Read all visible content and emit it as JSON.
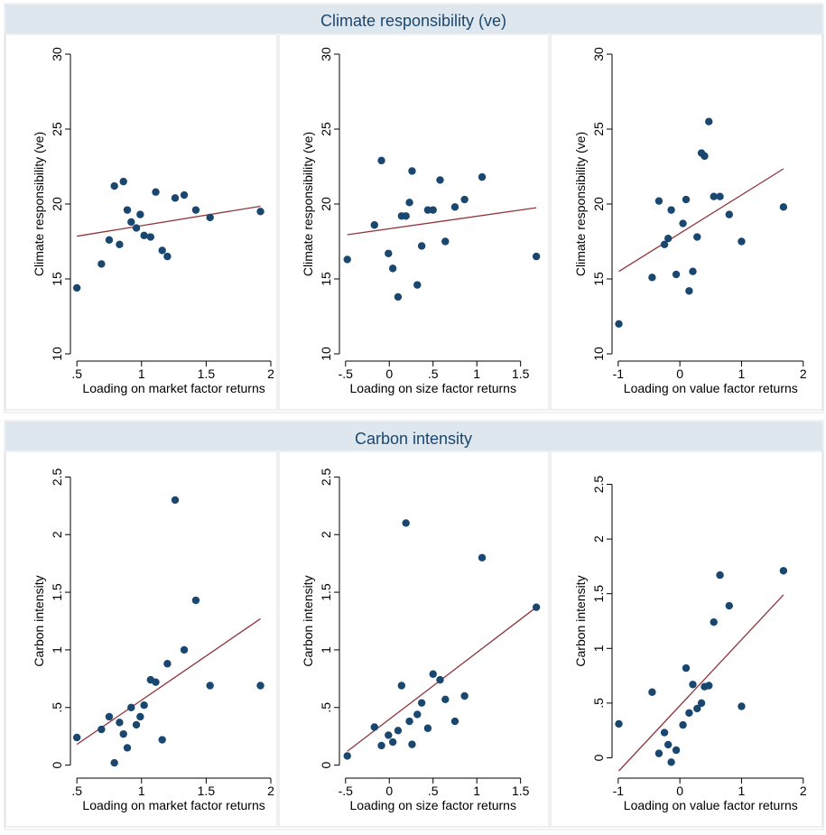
{
  "figure": {
    "colors": {
      "marker": "#1a476f",
      "fit_line": "#90353b",
      "header_bg": "#dfe7ee",
      "header_text": "#1a476f"
    }
  },
  "chart_data": [
    {
      "type": "scatter",
      "group": "Climate responsibility (ve)",
      "xlabel": "Loading on market factor returns",
      "ylabel": "Climate responsibility (ve)",
      "xlim": [
        0.45,
        2.0
      ],
      "ylim": [
        10,
        30
      ],
      "xticks": [
        0.5,
        1,
        1.5,
        2
      ],
      "xticklabels": [
        ".5",
        "1",
        "1.5",
        "2"
      ],
      "yticks": [
        10,
        15,
        20,
        25,
        30
      ],
      "yticklabels": [
        "10",
        "15",
        "20",
        "25",
        "30"
      ],
      "grid": false,
      "legend": "none",
      "points": [
        [
          0.5,
          14.4
        ],
        [
          0.69,
          16.0
        ],
        [
          0.75,
          17.6
        ],
        [
          0.79,
          21.2
        ],
        [
          0.83,
          17.3
        ],
        [
          0.86,
          21.5
        ],
        [
          0.89,
          19.6
        ],
        [
          0.92,
          18.8
        ],
        [
          0.96,
          18.4
        ],
        [
          0.99,
          19.3
        ],
        [
          1.02,
          17.9
        ],
        [
          1.07,
          17.8
        ],
        [
          1.11,
          20.8
        ],
        [
          1.16,
          16.9
        ],
        [
          1.2,
          16.5
        ],
        [
          1.26,
          20.4
        ],
        [
          1.33,
          20.6
        ],
        [
          1.42,
          19.6
        ],
        [
          1.53,
          19.1
        ],
        [
          1.92,
          19.5
        ]
      ],
      "fit_line": [
        [
          0.5,
          17.85
        ],
        [
          1.92,
          19.85
        ]
      ]
    },
    {
      "type": "scatter",
      "group": "Climate responsibility (ve)",
      "xlabel": "Loading on size factor returns",
      "ylabel": "Climate responsibility (ve)",
      "xlim": [
        -0.57,
        1.72
      ],
      "ylim": [
        10,
        30
      ],
      "xticks": [
        -0.5,
        0,
        0.5,
        1,
        1.5
      ],
      "xticklabels": [
        "-.5",
        "0",
        ".5",
        "1",
        "1.5"
      ],
      "yticks": [
        10,
        15,
        20,
        25,
        30
      ],
      "yticklabels": [
        "10",
        "15",
        "20",
        "25",
        "30"
      ],
      "grid": false,
      "legend": "none",
      "points": [
        [
          -0.48,
          16.3
        ],
        [
          -0.17,
          18.6
        ],
        [
          -0.09,
          22.9
        ],
        [
          -0.01,
          16.7
        ],
        [
          0.04,
          15.7
        ],
        [
          0.1,
          13.8
        ],
        [
          0.14,
          19.2
        ],
        [
          0.19,
          19.2
        ],
        [
          0.23,
          20.1
        ],
        [
          0.26,
          22.2
        ],
        [
          0.32,
          14.6
        ],
        [
          0.37,
          17.2
        ],
        [
          0.44,
          19.6
        ],
        [
          0.5,
          19.6
        ],
        [
          0.58,
          21.6
        ],
        [
          0.64,
          17.5
        ],
        [
          0.75,
          19.8
        ],
        [
          0.86,
          20.3
        ],
        [
          1.06,
          21.8
        ],
        [
          1.68,
          16.5
        ]
      ],
      "fit_line": [
        [
          -0.48,
          17.95
        ],
        [
          1.68,
          19.75
        ]
      ]
    },
    {
      "type": "scatter",
      "group": "Climate responsibility (ve)",
      "xlabel": "Loading on value factor returns",
      "ylabel": "Climate responsibility (ve)",
      "xlim": [
        -1.1,
        2.15
      ],
      "ylim": [
        10,
        30
      ],
      "xticks": [
        -1,
        0,
        1,
        2
      ],
      "xticklabels": [
        "-1",
        "0",
        "1",
        "2"
      ],
      "yticks": [
        10,
        15,
        20,
        25,
        30
      ],
      "yticklabels": [
        "10",
        "15",
        "20",
        "25",
        "30"
      ],
      "grid": false,
      "legend": "none",
      "points": [
        [
          -0.99,
          12.0
        ],
        [
          -0.45,
          15.1
        ],
        [
          -0.34,
          20.2
        ],
        [
          -0.25,
          17.3
        ],
        [
          -0.19,
          17.7
        ],
        [
          -0.14,
          19.6
        ],
        [
          -0.06,
          15.3
        ],
        [
          0.05,
          18.7
        ],
        [
          0.1,
          20.3
        ],
        [
          0.15,
          14.2
        ],
        [
          0.21,
          15.5
        ],
        [
          0.28,
          17.8
        ],
        [
          0.35,
          23.4
        ],
        [
          0.4,
          23.2
        ],
        [
          0.47,
          25.5
        ],
        [
          0.55,
          20.5
        ],
        [
          0.65,
          20.5
        ],
        [
          0.8,
          19.3
        ],
        [
          1.0,
          17.5
        ],
        [
          1.68,
          19.8
        ]
      ],
      "fit_line": [
        [
          -0.99,
          15.5
        ],
        [
          1.68,
          22.35
        ]
      ]
    },
    {
      "type": "scatter",
      "group": "Carbon intensity",
      "xlabel": "Loading on market factor returns",
      "ylabel": "Carbon intensity",
      "xlim": [
        0.45,
        2.0
      ],
      "ylim": [
        -0.05,
        2.55
      ],
      "xticks": [
        0.5,
        1,
        1.5,
        2
      ],
      "xticklabels": [
        ".5",
        "1",
        "1.5",
        "2"
      ],
      "yticks": [
        0,
        0.5,
        1,
        1.5,
        2,
        2.5
      ],
      "yticklabels": [
        "0",
        ".5",
        "1",
        "1.5",
        "2",
        "2.5"
      ],
      "grid": false,
      "legend": "none",
      "points": [
        [
          0.5,
          0.24
        ],
        [
          0.69,
          0.31
        ],
        [
          0.75,
          0.42
        ],
        [
          0.79,
          0.02
        ],
        [
          0.83,
          0.37
        ],
        [
          0.86,
          0.27
        ],
        [
          0.89,
          0.15
        ],
        [
          0.92,
          0.5
        ],
        [
          0.96,
          0.35
        ],
        [
          0.99,
          0.42
        ],
        [
          1.02,
          0.52
        ],
        [
          1.07,
          0.74
        ],
        [
          1.11,
          0.72
        ],
        [
          1.16,
          0.22
        ],
        [
          1.2,
          0.88
        ],
        [
          1.26,
          2.3
        ],
        [
          1.33,
          1.0
        ],
        [
          1.42,
          1.43
        ],
        [
          1.53,
          0.69
        ],
        [
          1.92,
          0.69
        ]
      ],
      "fit_line": [
        [
          0.5,
          0.18
        ],
        [
          1.92,
          1.27
        ]
      ]
    },
    {
      "type": "scatter",
      "group": "Carbon intensity",
      "xlabel": "Loading on size factor returns",
      "ylabel": "Carbon intensity",
      "xlim": [
        -0.57,
        1.72
      ],
      "ylim": [
        -0.05,
        2.55
      ],
      "xticks": [
        -0.5,
        0,
        0.5,
        1,
        1.5
      ],
      "xticklabels": [
        "-.5",
        "0",
        ".5",
        "1",
        "1.5"
      ],
      "yticks": [
        0,
        0.5,
        1,
        1.5,
        2,
        2.5
      ],
      "yticklabels": [
        "0",
        ".5",
        "1",
        "1.5",
        "2",
        "2.5"
      ],
      "grid": false,
      "legend": "none",
      "points": [
        [
          -0.48,
          0.08
        ],
        [
          -0.17,
          0.33
        ],
        [
          -0.09,
          0.17
        ],
        [
          -0.01,
          0.26
        ],
        [
          0.04,
          0.2
        ],
        [
          0.1,
          0.3
        ],
        [
          0.14,
          0.69
        ],
        [
          0.19,
          2.1
        ],
        [
          0.23,
          0.38
        ],
        [
          0.26,
          0.18
        ],
        [
          0.32,
          0.44
        ],
        [
          0.37,
          0.54
        ],
        [
          0.44,
          0.32
        ],
        [
          0.5,
          0.79
        ],
        [
          0.58,
          0.74
        ],
        [
          0.64,
          0.57
        ],
        [
          0.75,
          0.38
        ],
        [
          0.86,
          0.6
        ],
        [
          1.06,
          1.8
        ],
        [
          1.68,
          1.37
        ]
      ],
      "fit_line": [
        [
          -0.48,
          0.12
        ],
        [
          1.68,
          1.37
        ]
      ]
    },
    {
      "type": "scatter",
      "group": "Carbon intensity",
      "xlabel": "Loading on value factor returns",
      "ylabel": "Carbon intensity",
      "xlim": [
        -1.1,
        2.15
      ],
      "ylim": [
        -0.12,
        2.62
      ],
      "xticks": [
        -1,
        0,
        1,
        2
      ],
      "xticklabels": [
        "-1",
        "0",
        "1",
        "2"
      ],
      "yticks": [
        0,
        0.5,
        1,
        1.5,
        2,
        2.5
      ],
      "yticklabels": [
        "0",
        ".5",
        "1",
        "1.5",
        "2",
        "2.5"
      ],
      "grid": false,
      "legend": "none",
      "points": [
        [
          -0.99,
          0.31
        ],
        [
          -0.45,
          0.6
        ],
        [
          -0.34,
          0.04
        ],
        [
          -0.25,
          0.23
        ],
        [
          -0.19,
          0.12
        ],
        [
          -0.14,
          -0.04
        ],
        [
          -0.06,
          0.07
        ],
        [
          0.05,
          0.3
        ],
        [
          0.1,
          0.82
        ],
        [
          0.15,
          0.41
        ],
        [
          0.21,
          0.67
        ],
        [
          0.28,
          0.45
        ],
        [
          0.35,
          0.5
        ],
        [
          0.4,
          0.65
        ],
        [
          0.47,
          0.66
        ],
        [
          0.55,
          1.24
        ],
        [
          0.65,
          1.67
        ],
        [
          0.8,
          1.39
        ],
        [
          1.0,
          0.47
        ],
        [
          1.68,
          1.71
        ]
      ],
      "fit_line": [
        [
          -0.99,
          -0.12
        ],
        [
          1.68,
          1.49
        ]
      ]
    }
  ]
}
